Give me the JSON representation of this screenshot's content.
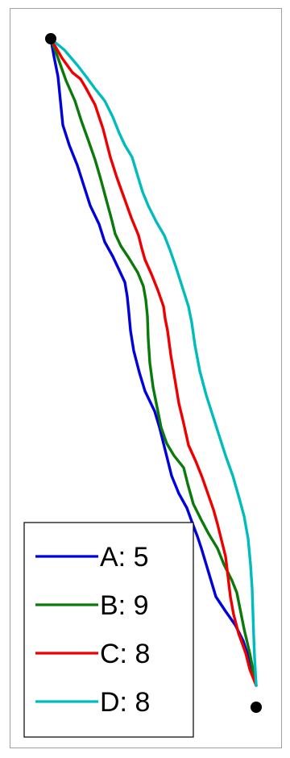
{
  "diagram": {
    "routes": [
      {
        "id": "A",
        "label": "A: 5",
        "color": "#0000dd"
      },
      {
        "id": "B",
        "label": "B: 9",
        "color": "#0a7a0a"
      },
      {
        "id": "C",
        "label": "C: 8",
        "color": "#ee0000"
      },
      {
        "id": "D",
        "label": "D: 8",
        "color": "#00bcbc"
      }
    ],
    "endpoint_color": "#000000"
  }
}
